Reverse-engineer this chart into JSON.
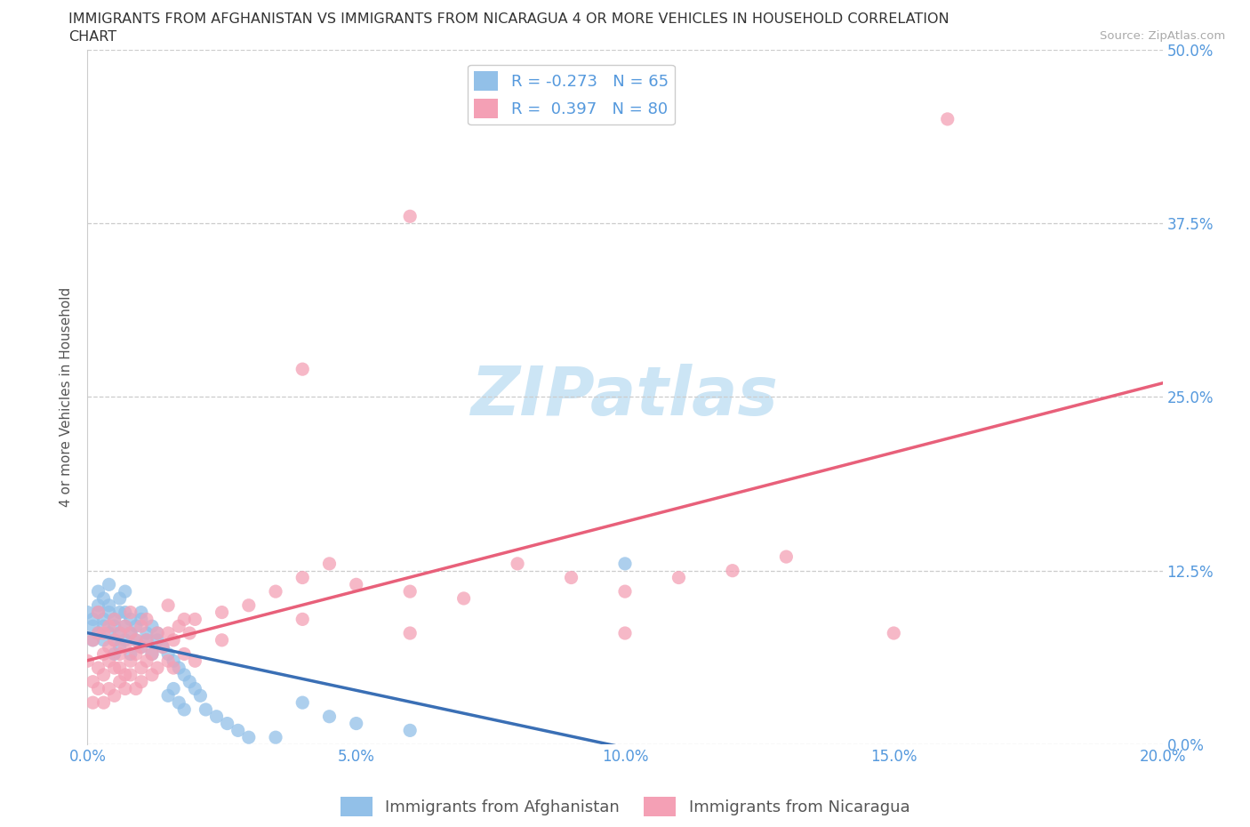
{
  "title_line1": "IMMIGRANTS FROM AFGHANISTAN VS IMMIGRANTS FROM NICARAGUA 4 OR MORE VEHICLES IN HOUSEHOLD CORRELATION",
  "title_line2": "CHART",
  "source_text": "Source: ZipAtlas.com",
  "watermark": "ZIPatlas",
  "ylabel": "4 or more Vehicles in Household",
  "xlim": [
    0.0,
    0.2
  ],
  "ylim": [
    0.0,
    0.5
  ],
  "afghanistan_color": "#92c0e8",
  "nicaragua_color": "#f4a0b5",
  "afghanistan_line_color": "#3a6fb5",
  "nicaragua_line_color": "#e8607a",
  "R_afghanistan": -0.273,
  "N_afghanistan": 65,
  "R_nicaragua": 0.397,
  "N_nicaragua": 80,
  "legend_label_afghanistan": "Immigrants from Afghanistan",
  "legend_label_nicaragua": "Immigrants from Nicaragua",
  "afghanistan_scatter": [
    [
      0.0,
      0.095
    ],
    [
      0.001,
      0.085
    ],
    [
      0.001,
      0.075
    ],
    [
      0.001,
      0.09
    ],
    [
      0.002,
      0.1
    ],
    [
      0.002,
      0.08
    ],
    [
      0.002,
      0.095
    ],
    [
      0.002,
      0.11
    ],
    [
      0.003,
      0.09
    ],
    [
      0.003,
      0.075
    ],
    [
      0.003,
      0.105
    ],
    [
      0.003,
      0.085
    ],
    [
      0.004,
      0.08
    ],
    [
      0.004,
      0.095
    ],
    [
      0.004,
      0.115
    ],
    [
      0.004,
      0.1
    ],
    [
      0.005,
      0.085
    ],
    [
      0.005,
      0.075
    ],
    [
      0.005,
      0.09
    ],
    [
      0.005,
      0.065
    ],
    [
      0.006,
      0.08
    ],
    [
      0.006,
      0.095
    ],
    [
      0.006,
      0.07
    ],
    [
      0.006,
      0.105
    ],
    [
      0.007,
      0.085
    ],
    [
      0.007,
      0.095
    ],
    [
      0.007,
      0.075
    ],
    [
      0.007,
      0.11
    ],
    [
      0.008,
      0.08
    ],
    [
      0.008,
      0.09
    ],
    [
      0.008,
      0.065
    ],
    [
      0.009,
      0.075
    ],
    [
      0.009,
      0.085
    ],
    [
      0.01,
      0.09
    ],
    [
      0.01,
      0.07
    ],
    [
      0.01,
      0.095
    ],
    [
      0.011,
      0.08
    ],
    [
      0.011,
      0.075
    ],
    [
      0.012,
      0.085
    ],
    [
      0.012,
      0.065
    ],
    [
      0.013,
      0.075
    ],
    [
      0.013,
      0.08
    ],
    [
      0.014,
      0.07
    ],
    [
      0.015,
      0.065
    ],
    [
      0.015,
      0.035
    ],
    [
      0.016,
      0.06
    ],
    [
      0.016,
      0.04
    ],
    [
      0.017,
      0.055
    ],
    [
      0.017,
      0.03
    ],
    [
      0.018,
      0.05
    ],
    [
      0.018,
      0.025
    ],
    [
      0.019,
      0.045
    ],
    [
      0.02,
      0.04
    ],
    [
      0.021,
      0.035
    ],
    [
      0.022,
      0.025
    ],
    [
      0.024,
      0.02
    ],
    [
      0.026,
      0.015
    ],
    [
      0.028,
      0.01
    ],
    [
      0.03,
      0.005
    ],
    [
      0.035,
      0.005
    ],
    [
      0.04,
      0.03
    ],
    [
      0.045,
      0.02
    ],
    [
      0.05,
      0.015
    ],
    [
      0.06,
      0.01
    ],
    [
      0.1,
      0.13
    ]
  ],
  "nicaragua_scatter": [
    [
      0.0,
      0.06
    ],
    [
      0.001,
      0.045
    ],
    [
      0.001,
      0.075
    ],
    [
      0.001,
      0.03
    ],
    [
      0.002,
      0.055
    ],
    [
      0.002,
      0.08
    ],
    [
      0.002,
      0.04
    ],
    [
      0.002,
      0.095
    ],
    [
      0.003,
      0.065
    ],
    [
      0.003,
      0.05
    ],
    [
      0.003,
      0.08
    ],
    [
      0.003,
      0.03
    ],
    [
      0.004,
      0.06
    ],
    [
      0.004,
      0.085
    ],
    [
      0.004,
      0.04
    ],
    [
      0.004,
      0.07
    ],
    [
      0.005,
      0.055
    ],
    [
      0.005,
      0.075
    ],
    [
      0.005,
      0.035
    ],
    [
      0.005,
      0.09
    ],
    [
      0.006,
      0.065
    ],
    [
      0.006,
      0.08
    ],
    [
      0.006,
      0.045
    ],
    [
      0.006,
      0.055
    ],
    [
      0.007,
      0.07
    ],
    [
      0.007,
      0.05
    ],
    [
      0.007,
      0.085
    ],
    [
      0.007,
      0.04
    ],
    [
      0.008,
      0.06
    ],
    [
      0.008,
      0.08
    ],
    [
      0.008,
      0.095
    ],
    [
      0.008,
      0.05
    ],
    [
      0.009,
      0.065
    ],
    [
      0.009,
      0.075
    ],
    [
      0.009,
      0.04
    ],
    [
      0.01,
      0.07
    ],
    [
      0.01,
      0.055
    ],
    [
      0.01,
      0.085
    ],
    [
      0.01,
      0.045
    ],
    [
      0.011,
      0.06
    ],
    [
      0.011,
      0.075
    ],
    [
      0.011,
      0.09
    ],
    [
      0.012,
      0.065
    ],
    [
      0.012,
      0.05
    ],
    [
      0.013,
      0.08
    ],
    [
      0.013,
      0.055
    ],
    [
      0.014,
      0.07
    ],
    [
      0.015,
      0.08
    ],
    [
      0.015,
      0.06
    ],
    [
      0.015,
      0.1
    ],
    [
      0.016,
      0.075
    ],
    [
      0.016,
      0.055
    ],
    [
      0.017,
      0.085
    ],
    [
      0.018,
      0.09
    ],
    [
      0.018,
      0.065
    ],
    [
      0.019,
      0.08
    ],
    [
      0.02,
      0.09
    ],
    [
      0.02,
      0.06
    ],
    [
      0.025,
      0.095
    ],
    [
      0.025,
      0.075
    ],
    [
      0.03,
      0.1
    ],
    [
      0.035,
      0.11
    ],
    [
      0.04,
      0.12
    ],
    [
      0.04,
      0.09
    ],
    [
      0.045,
      0.13
    ],
    [
      0.05,
      0.115
    ],
    [
      0.06,
      0.08
    ],
    [
      0.06,
      0.11
    ],
    [
      0.07,
      0.105
    ],
    [
      0.08,
      0.13
    ],
    [
      0.09,
      0.12
    ],
    [
      0.1,
      0.08
    ],
    [
      0.1,
      0.11
    ],
    [
      0.11,
      0.12
    ],
    [
      0.12,
      0.125
    ],
    [
      0.13,
      0.135
    ],
    [
      0.04,
      0.27
    ],
    [
      0.06,
      0.38
    ],
    [
      0.15,
      0.08
    ],
    [
      0.16,
      0.45
    ]
  ],
  "title_fontsize": 11.5,
  "axis_label_fontsize": 11,
  "tick_fontsize": 12,
  "legend_fontsize": 13,
  "watermark_fontsize": 55,
  "watermark_color": "#cce5f5",
  "grid_color": "#cccccc",
  "background_color": "#ffffff",
  "tick_color": "#5599dd"
}
